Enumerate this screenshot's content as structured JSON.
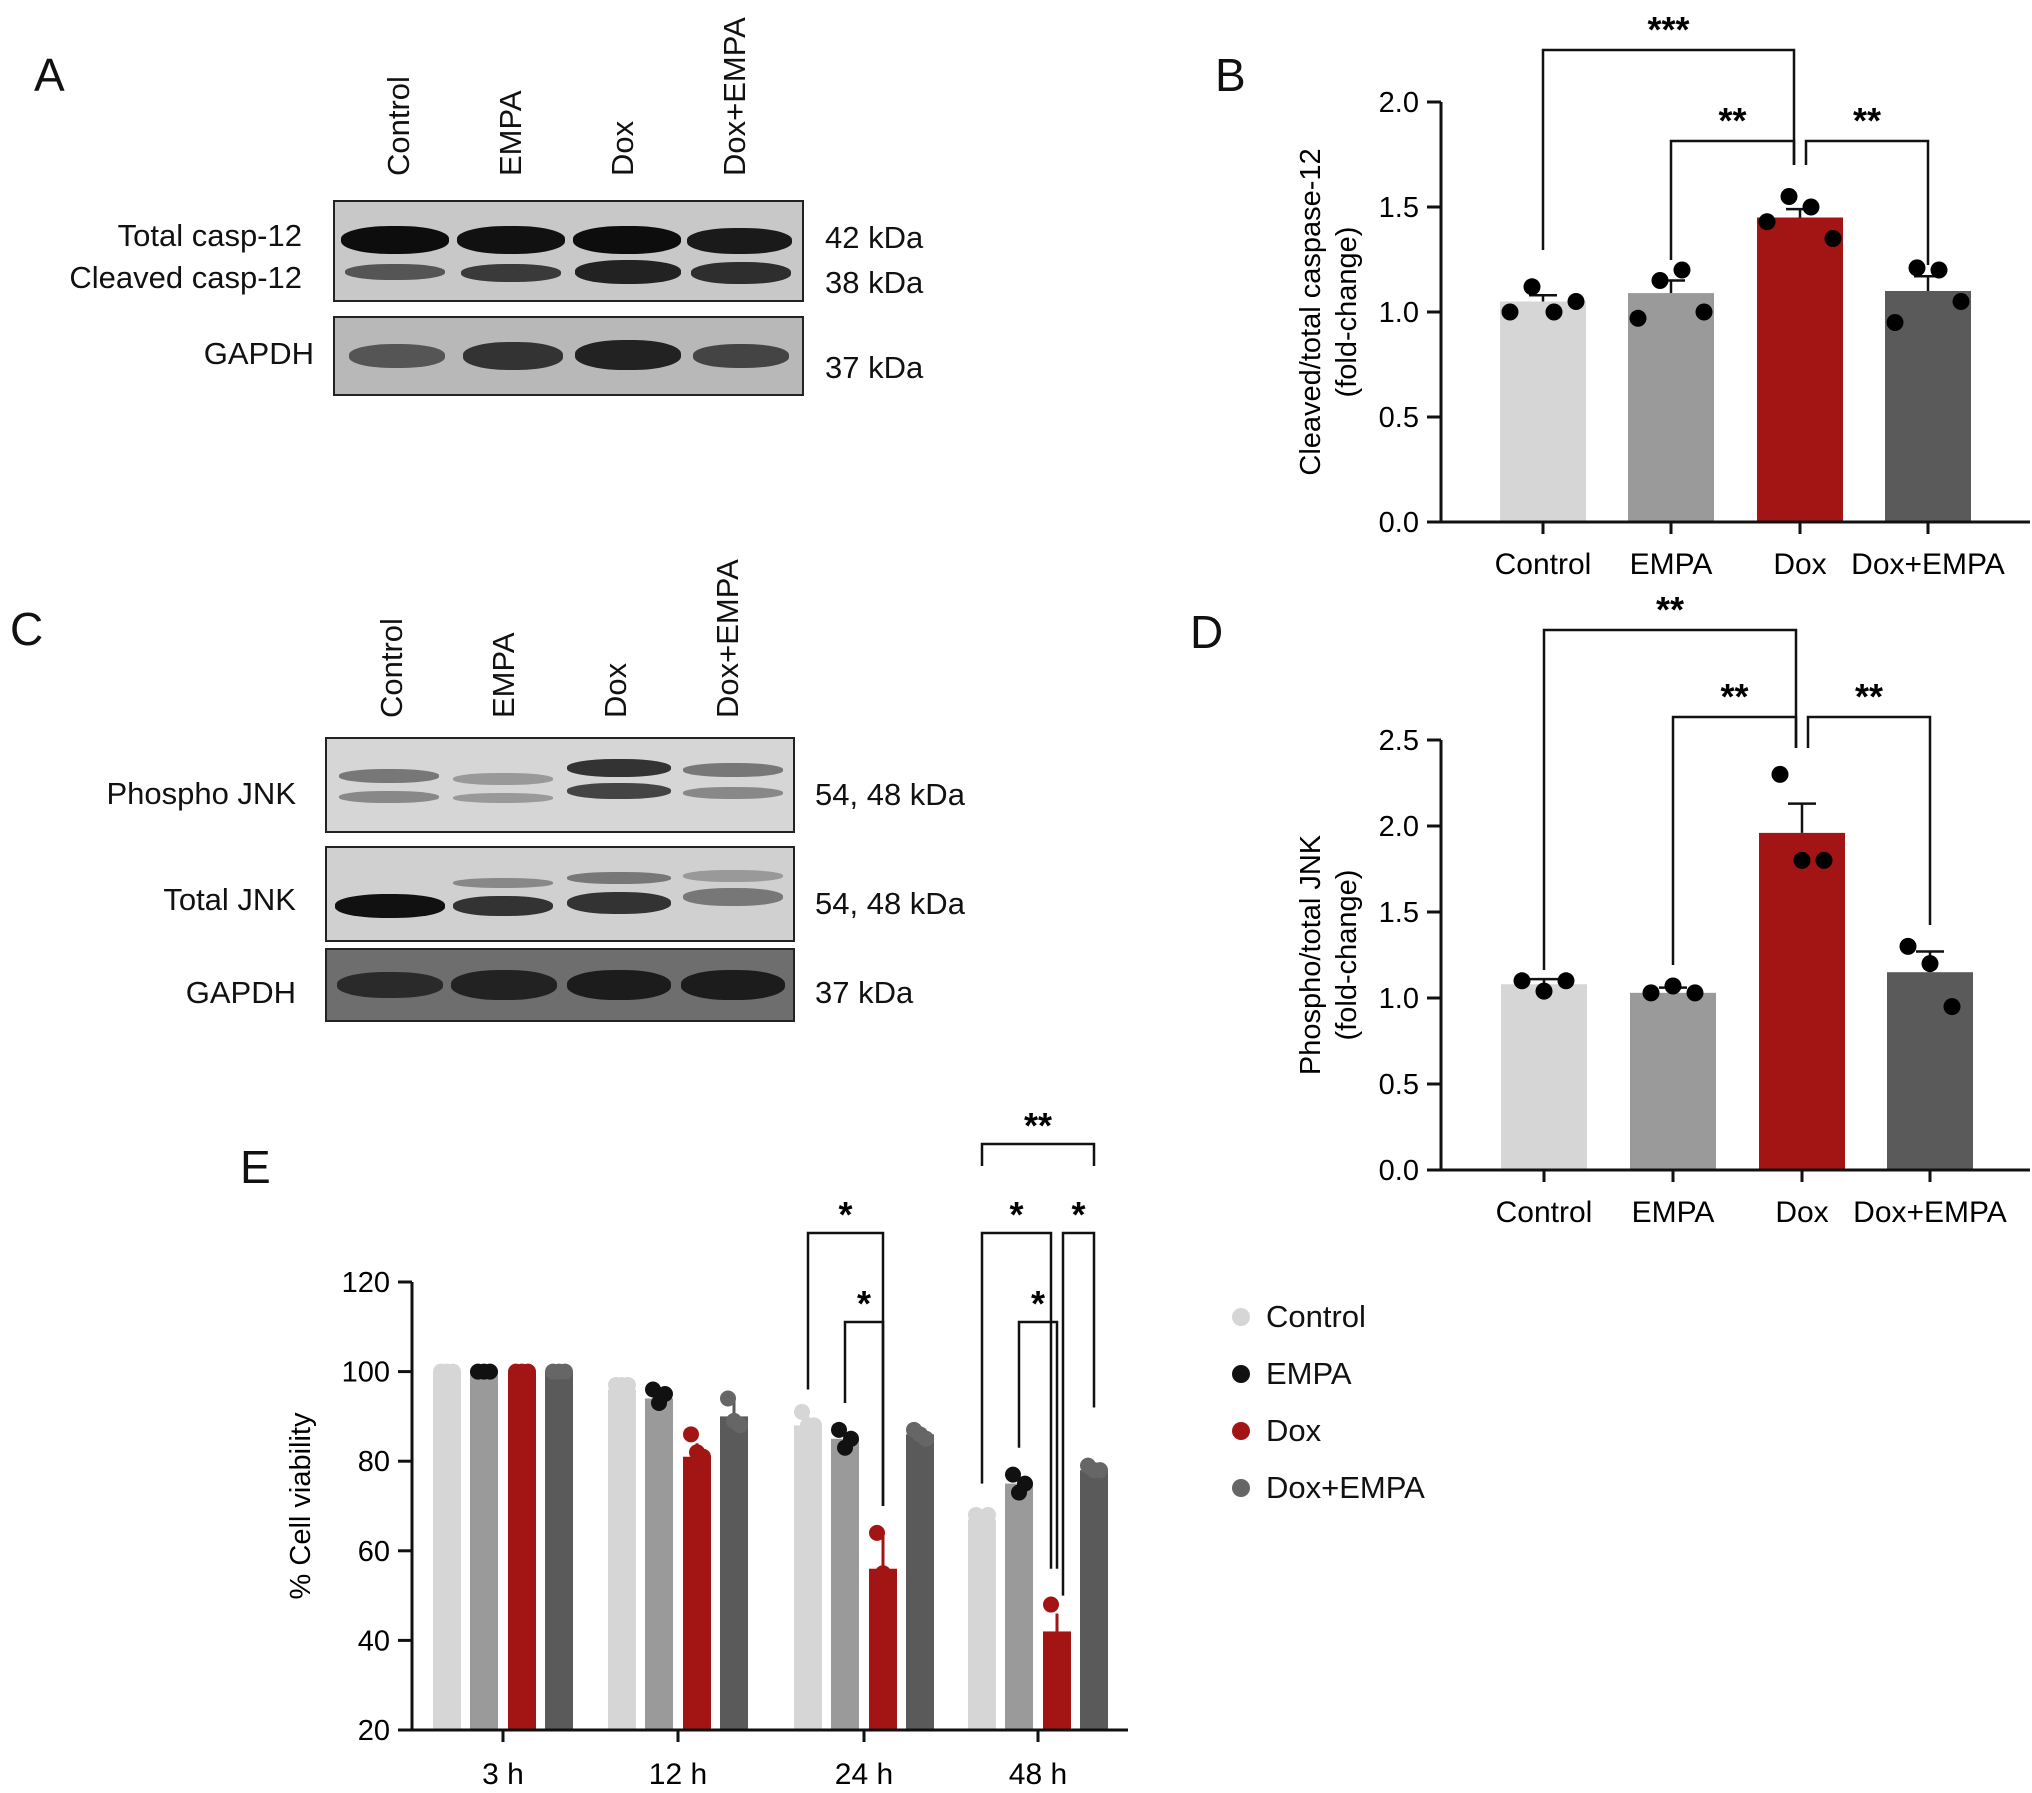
{
  "panels": {
    "A": {
      "letter": "A",
      "lanes": [
        "Control",
        "EMPA",
        "Dox",
        "Dox+EMPA"
      ],
      "rows": [
        {
          "labels": [
            "Total casp-12",
            "Cleaved casp-12"
          ],
          "kda": [
            "42 kDa",
            "38 kDa"
          ]
        },
        {
          "labels": [
            "GAPDH"
          ],
          "kda": [
            "37 kDa"
          ]
        }
      ]
    },
    "C": {
      "letter": "C",
      "lanes": [
        "Control",
        "EMPA",
        "Dox",
        "Dox+EMPA"
      ],
      "rows": [
        {
          "labels": [
            "Phospho JNK"
          ],
          "kda": [
            "54, 48 kDa"
          ]
        },
        {
          "labels": [
            "Total JNK"
          ],
          "kda": [
            "54, 48 kDa"
          ]
        },
        {
          "labels": [
            "GAPDH"
          ],
          "kda": [
            "37 kDa"
          ]
        }
      ]
    },
    "B_letter": "B",
    "D_letter": "D",
    "E_letter": "E"
  },
  "colors": {
    "control": "#d6d6d6",
    "empa": "#9a9a9a",
    "dox": "#a31515",
    "dox_empa": "#5a5a5a",
    "axis": "#111111"
  },
  "legend": [
    {
      "label": "Control",
      "color": "#d6d6d6"
    },
    {
      "label": "EMPA",
      "color": "#111111"
    },
    {
      "label": "Dox",
      "color": "#a31515"
    },
    {
      "label": "Dox+EMPA",
      "color": "#666666"
    }
  ],
  "chart_data": [
    {
      "id": "B",
      "type": "bar",
      "categories": [
        "Control",
        "EMPA",
        "Dox",
        "Dox+EMPA"
      ],
      "values": [
        1.05,
        1.09,
        1.45,
        1.1
      ],
      "errors": [
        0.03,
        0.06,
        0.04,
        0.07
      ],
      "points": [
        [
          1.0,
          1.12,
          1.0,
          1.05
        ],
        [
          0.97,
          1.15,
          1.2,
          1.0
        ],
        [
          1.43,
          1.55,
          1.5,
          1.35
        ],
        [
          0.95,
          1.21,
          1.2,
          1.05
        ]
      ],
      "ylabel": "Cleaved/total caspase-12",
      "ylabel2": "(fold-change)",
      "ylim": [
        0,
        2.0
      ],
      "yticks": [
        "0.0",
        "0.5",
        "1.0",
        "1.5",
        "2.0"
      ],
      "comparisons": [
        {
          "from": 0,
          "to": 2,
          "label": "***"
        },
        {
          "from": 1,
          "to": 2,
          "label": "**"
        },
        {
          "from": 2,
          "to": 3,
          "label": "**"
        }
      ]
    },
    {
      "id": "D",
      "type": "bar",
      "categories": [
        "Control",
        "EMPA",
        "Dox",
        "Dox+EMPA"
      ],
      "values": [
        1.08,
        1.03,
        1.96,
        1.15
      ],
      "errors": [
        0.03,
        0.03,
        0.17,
        0.12
      ],
      "points": [
        [
          1.1,
          1.04,
          1.1
        ],
        [
          1.03,
          1.07,
          1.03
        ],
        [
          2.3,
          1.8,
          1.8
        ],
        [
          1.3,
          1.2,
          0.95
        ]
      ],
      "ylabel": "Phospho/total JNK",
      "ylabel2": "(fold-change)",
      "ylim": [
        0,
        2.5
      ],
      "yticks": [
        "0.0",
        "0.5",
        "1.0",
        "1.5",
        "2.0",
        "2.5"
      ],
      "comparisons": [
        {
          "from": 0,
          "to": 2,
          "label": "**"
        },
        {
          "from": 1,
          "to": 2,
          "label": "**"
        },
        {
          "from": 2,
          "to": 3,
          "label": "**"
        }
      ]
    },
    {
      "id": "E",
      "type": "bar",
      "categories": [
        "3 h",
        "12 h",
        "24 h",
        "48 h"
      ],
      "series": [
        {
          "name": "Control",
          "values": [
            100,
            96,
            88,
            67
          ],
          "errors": [
            0,
            1,
            2,
            1
          ],
          "points": [
            [
              100,
              100,
              100
            ],
            [
              97,
              97,
              97
            ],
            [
              91,
              88,
              88
            ],
            [
              68,
              66,
              68
            ]
          ]
        },
        {
          "name": "EMPA",
          "values": [
            100,
            94,
            85,
            75
          ],
          "errors": [
            0,
            2,
            2,
            2
          ],
          "points": [
            [
              100,
              100,
              100
            ],
            [
              96,
              93,
              95
            ],
            [
              87,
              83,
              85
            ],
            [
              77,
              73,
              75
            ]
          ]
        },
        {
          "name": "Dox",
          "values": [
            100,
            81,
            56,
            42
          ],
          "errors": [
            0,
            3,
            8,
            4
          ],
          "points": [
            [
              100,
              100,
              100
            ],
            [
              86,
              82,
              81
            ],
            [
              64,
              55,
              50
            ],
            [
              48,
              40,
              40
            ]
          ]
        },
        {
          "name": "Dox+EMPA",
          "values": [
            100,
            90,
            86,
            78
          ],
          "errors": [
            0,
            4,
            1,
            1
          ],
          "points": [
            [
              100,
              100,
              100
            ],
            [
              94,
              89,
              88
            ],
            [
              87,
              86,
              85
            ],
            [
              79,
              78,
              78
            ]
          ]
        }
      ],
      "ylabel": "% Cell viability",
      "ylim": [
        20,
        120
      ],
      "yticks": [
        "20",
        "40",
        "60",
        "80",
        "100",
        "120"
      ],
      "comparisons": [
        {
          "group": 2,
          "from": 0,
          "to": 2,
          "label": "*",
          "level": 2
        },
        {
          "group": 2,
          "from": 1,
          "to": 2,
          "label": "*",
          "level": 1
        },
        {
          "group": 3,
          "from": 0,
          "to": 3,
          "label": "**",
          "level": 3
        },
        {
          "group": 3,
          "from": 0,
          "to": 2,
          "label": "*",
          "level": 2
        },
        {
          "group": 3,
          "from": 2,
          "to": 3,
          "label": "*",
          "level": 2
        },
        {
          "group": 3,
          "from": 1,
          "to": 2,
          "label": "*",
          "level": 1
        }
      ]
    }
  ]
}
